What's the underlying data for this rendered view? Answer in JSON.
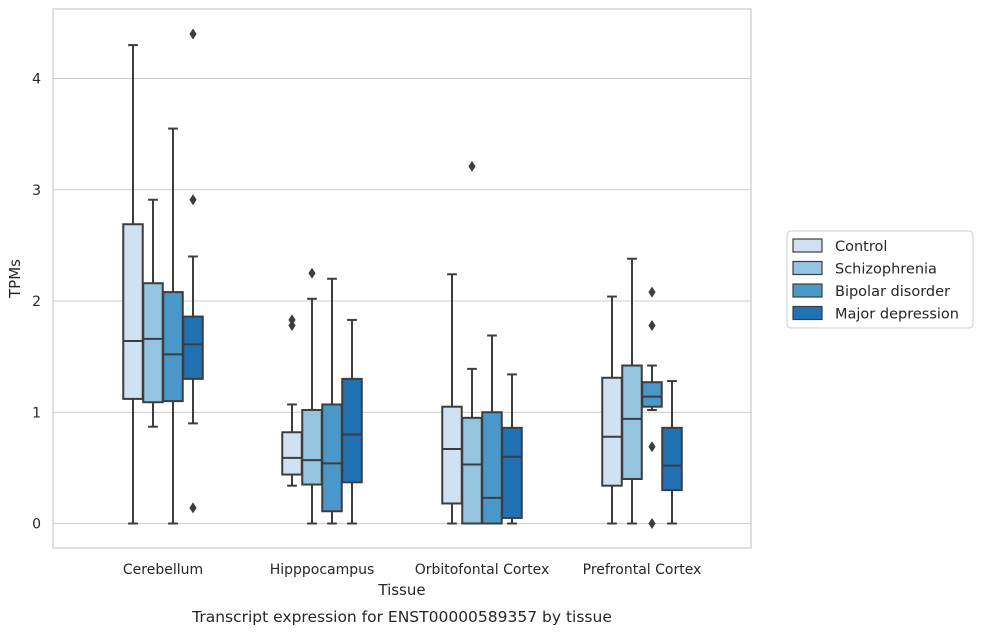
{
  "chart_data": {
    "type": "box",
    "caption": "Transcript expression for ENST00000589357 by tissue",
    "xlabel": "Tissue",
    "ylabel": "TPMs",
    "ylim": [
      -0.2,
      4.6
    ],
    "yticks": [
      0,
      1,
      2,
      3,
      4
    ],
    "grid": "horizontal",
    "legend_position": "right",
    "categories": [
      "Cerebellum",
      "Hipppocampus",
      "Orbitofontal Cortex",
      "Prefrontal Cortex"
    ],
    "series": [
      {
        "name": "Control",
        "color": "#d0e1f2",
        "boxes": [
          {
            "whislo": 0.0,
            "q1": 1.12,
            "med": 1.64,
            "q3": 2.69,
            "whishi": 4.3,
            "fliers": []
          },
          {
            "whislo": 0.34,
            "q1": 0.44,
            "med": 0.59,
            "q3": 0.82,
            "whishi": 1.07,
            "fliers": [
              1.78,
              1.83
            ]
          },
          {
            "whislo": 0.0,
            "q1": 0.18,
            "med": 0.67,
            "q3": 1.05,
            "whishi": 2.24,
            "fliers": []
          },
          {
            "whislo": 0.0,
            "q1": 0.34,
            "med": 0.78,
            "q3": 1.31,
            "whishi": 2.04,
            "fliers": []
          }
        ]
      },
      {
        "name": "Schizophrenia",
        "color": "#94c4df",
        "boxes": [
          {
            "whislo": 0.87,
            "q1": 1.09,
            "med": 1.66,
            "q3": 2.16,
            "whishi": 2.91,
            "fliers": []
          },
          {
            "whislo": 0.0,
            "q1": 0.35,
            "med": 0.57,
            "q3": 1.02,
            "whishi": 2.02,
            "fliers": [
              2.25
            ]
          },
          {
            "whislo": 0.0,
            "q1": 0.0,
            "med": 0.53,
            "q3": 0.95,
            "whishi": 1.39,
            "fliers": [
              3.21
            ]
          },
          {
            "whislo": 0.0,
            "q1": 0.4,
            "med": 0.94,
            "q3": 1.42,
            "whishi": 2.38,
            "fliers": []
          }
        ]
      },
      {
        "name": "Bipolar disorder",
        "color": "#4a98c9",
        "boxes": [
          {
            "whislo": 0.0,
            "q1": 1.1,
            "med": 1.52,
            "q3": 2.08,
            "whishi": 3.55,
            "fliers": []
          },
          {
            "whislo": 0.0,
            "q1": 0.11,
            "med": 0.54,
            "q3": 1.07,
            "whishi": 2.2,
            "fliers": []
          },
          {
            "whislo": 0.0,
            "q1": 0.0,
            "med": 0.23,
            "q3": 1.0,
            "whishi": 1.69,
            "fliers": []
          },
          {
            "whislo": 1.02,
            "q1": 1.05,
            "med": 1.14,
            "q3": 1.27,
            "whishi": 1.42,
            "fliers": [
              0.0,
              0.69,
              1.78,
              2.08
            ]
          }
        ]
      },
      {
        "name": "Major depression",
        "color": "#2171b5",
        "boxes": [
          {
            "whislo": 0.9,
            "q1": 1.3,
            "med": 1.61,
            "q3": 1.86,
            "whishi": 2.4,
            "fliers": [
              0.14,
              2.91,
              4.4
            ]
          },
          {
            "whislo": 0.0,
            "q1": 0.37,
            "med": 0.8,
            "q3": 1.3,
            "whishi": 1.83,
            "fliers": []
          },
          {
            "whislo": 0.0,
            "q1": 0.05,
            "med": 0.6,
            "q3": 0.86,
            "whishi": 1.34,
            "fliers": []
          },
          {
            "whislo": 0.0,
            "q1": 0.3,
            "med": 0.52,
            "q3": 0.86,
            "whishi": 1.28,
            "fliers": []
          }
        ]
      }
    ]
  }
}
